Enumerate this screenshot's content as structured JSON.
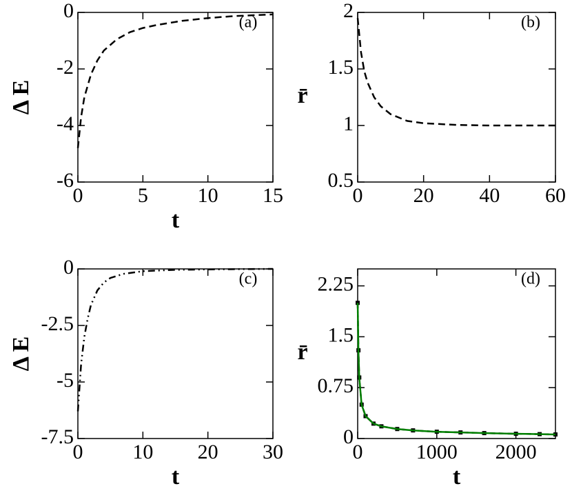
{
  "chart_data": [
    {
      "type": "line",
      "annotation": "(a)",
      "xlabel": "t",
      "ylabel": "Δ E",
      "xlim": [
        0,
        15
      ],
      "ylim": [
        -6,
        0
      ],
      "xticks": [
        0,
        5,
        10,
        15
      ],
      "yticks": [
        -6,
        -4,
        -2,
        0
      ],
      "x": [
        0,
        0.25,
        0.5,
        1,
        1.5,
        2,
        3,
        4,
        5,
        6,
        8,
        10,
        12,
        15
      ],
      "series": [
        {
          "color": "#000000",
          "style": "dashed",
          "values": [
            -4.8,
            -3.7,
            -3.0,
            -2.2,
            -1.7,
            -1.35,
            -0.95,
            -0.7,
            -0.55,
            -0.45,
            -0.3,
            -0.2,
            -0.13,
            -0.07
          ]
        }
      ]
    },
    {
      "type": "line",
      "annotation": "(b)",
      "ylabel": "r̄",
      "xlim": [
        0,
        60
      ],
      "ylim": [
        0.5,
        2
      ],
      "xticks": [
        0,
        20,
        40,
        60
      ],
      "yticks": [
        0.5,
        1,
        1.5,
        2
      ],
      "x": [
        0,
        1,
        2,
        3,
        5,
        7,
        10,
        15,
        20,
        30,
        40,
        50,
        60
      ],
      "series": [
        {
          "color": "#000000",
          "style": "dashed",
          "values": [
            1.95,
            1.65,
            1.48,
            1.38,
            1.25,
            1.17,
            1.1,
            1.04,
            1.02,
            1.005,
            1.0,
            1.0,
            1.0
          ]
        }
      ]
    },
    {
      "type": "line",
      "annotation": "(c)",
      "xlabel": "t",
      "ylabel": "Δ E",
      "xlim": [
        0,
        30
      ],
      "ylim": [
        -7.5,
        0
      ],
      "xticks": [
        0,
        10,
        20,
        30
      ],
      "yticks": [
        -7.5,
        -5,
        -2.5,
        0
      ],
      "x": [
        0,
        0.5,
        1,
        1.5,
        2,
        3,
        4,
        5,
        7,
        10,
        15,
        20,
        25,
        30
      ],
      "series": [
        {
          "color": "#000000",
          "style": "dashdotdot",
          "values": [
            -6.3,
            -4.2,
            -3.0,
            -2.2,
            -1.6,
            -0.95,
            -0.6,
            -0.4,
            -0.22,
            -0.1,
            -0.04,
            -0.02,
            -0.01,
            0
          ]
        }
      ]
    },
    {
      "type": "line",
      "annotation": "(d)",
      "xlabel": "t",
      "ylabel": "r̄",
      "xlim": [
        0,
        2500
      ],
      "ylim": [
        0,
        2.5
      ],
      "xticks": [
        0,
        1000,
        2000
      ],
      "yticks": [
        0,
        0.75,
        1.5,
        2.25
      ],
      "x": [
        0,
        10,
        20,
        50,
        100,
        200,
        300,
        500,
        700,
        1000,
        1300,
        1600,
        2000,
        2300,
        2500
      ],
      "series": [
        {
          "color": "#000000",
          "style": "dashed-squares",
          "values": [
            2.0,
            1.3,
            0.9,
            0.5,
            0.33,
            0.22,
            0.18,
            0.14,
            0.12,
            0.1,
            0.09,
            0.08,
            0.07,
            0.065,
            0.06
          ]
        },
        {
          "color": "#008000",
          "style": "solid",
          "values": [
            2.0,
            1.3,
            0.9,
            0.5,
            0.33,
            0.22,
            0.18,
            0.14,
            0.12,
            0.1,
            0.09,
            0.08,
            0.07,
            0.065,
            0.06
          ]
        }
      ]
    }
  ]
}
